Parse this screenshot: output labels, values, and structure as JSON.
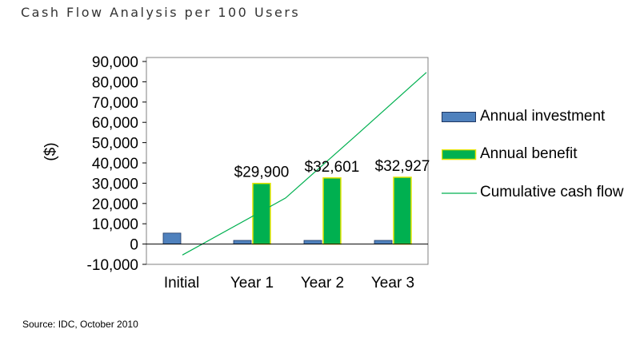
{
  "page": {
    "title": "Cash Flow Analysis per 100 Users",
    "source": "Source: IDC, October 2010"
  },
  "colors": {
    "investment_fill": "#4f81bd",
    "investment_edge": "#1f3864",
    "benefit_fill": "#00b050",
    "benefit_edge": "#e6e600",
    "cumulative_line": "#00b050"
  },
  "chart_data": {
    "type": "bar",
    "categories": [
      "Initial",
      "Year 1",
      "Year 2",
      "Year 3"
    ],
    "ylabel": "($)",
    "ylim": [
      -10000,
      90000
    ],
    "yticks": [
      -10000,
      0,
      10000,
      20000,
      30000,
      40000,
      50000,
      60000,
      70000,
      80000,
      90000
    ],
    "ytick_labels": [
      "-10,000",
      "0",
      "10,000",
      "20,000",
      "30,000",
      "40,000",
      "50,000",
      "60,000",
      "70,000",
      "80,000",
      "90,000"
    ],
    "series": [
      {
        "name": "Annual investment",
        "kind": "bar",
        "values": [
          5400,
          1800,
          1800,
          1800
        ]
      },
      {
        "name": "Annual benefit",
        "kind": "bar",
        "values": [
          0,
          29900,
          32601,
          32927
        ],
        "data_labels": [
          "",
          "$29,900",
          "$32,601",
          "$32,927"
        ]
      },
      {
        "name": "Cumulative cash flow",
        "kind": "line",
        "values": [
          -5400,
          22700,
          53501,
          84628
        ]
      }
    ],
    "legend_position": "right",
    "grid": false
  }
}
